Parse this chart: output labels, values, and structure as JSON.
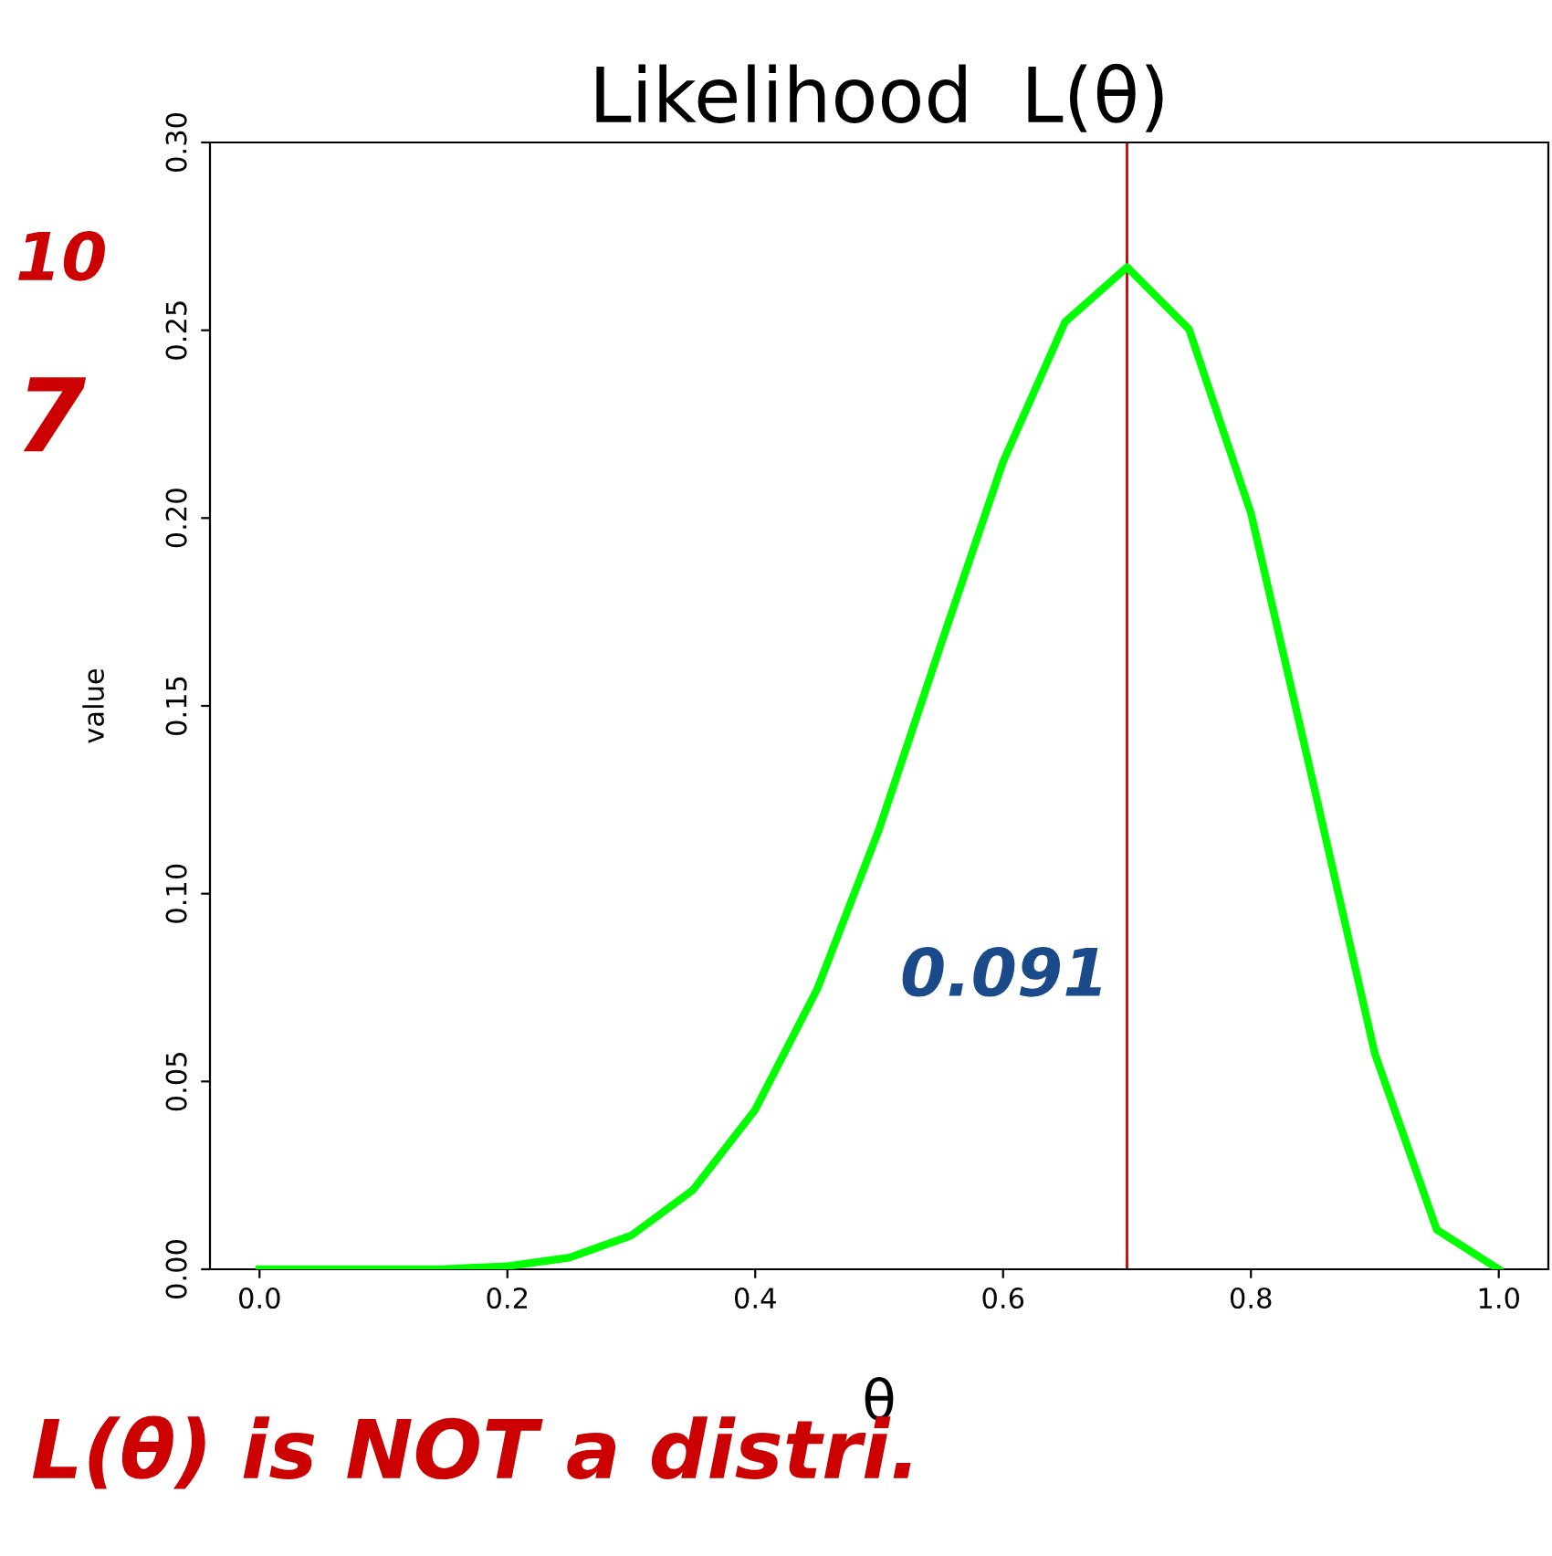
{
  "chart_data": {
    "type": "line",
    "title": "Likelihood  L(θ)",
    "xlabel": "θ",
    "ylabel": "value",
    "x": [
      0.0,
      0.1,
      0.15,
      0.2,
      0.25,
      0.3,
      0.35,
      0.4,
      0.45,
      0.5,
      0.55,
      0.6,
      0.65,
      0.7,
      0.75,
      0.8,
      0.85,
      0.9,
      0.95,
      1.0
    ],
    "series": [
      {
        "color": "#00ff00",
        "values": [
          0.0,
          0.0,
          0.0001,
          0.0008,
          0.0031,
          0.009,
          0.0212,
          0.0425,
          0.0746,
          0.1172,
          0.1665,
          0.215,
          0.2522,
          0.2668,
          0.2503,
          0.2013,
          0.1298,
          0.0574,
          0.0105,
          0.0
        ]
      }
    ],
    "xlim": [
      -0.04,
      1.04
    ],
    "ylim": [
      0,
      0.3
    ],
    "xticks": [
      {
        "value": 0,
        "label": "0.0"
      },
      0.2,
      0.4,
      0.6,
      0.8,
      {
        "value": 1,
        "label": "1.0"
      }
    ],
    "yticks": [
      {
        "value": 0,
        "label": "0.00"
      },
      0.05,
      {
        "value": 0.1,
        "label": "0.10"
      },
      0.15,
      {
        "value": 0.2,
        "label": "0.20"
      },
      0.25,
      {
        "value": 0.3,
        "label": "0.30"
      }
    ],
    "ref_lines": [
      {
        "axis": "x",
        "value": 0.7,
        "color": "#cc0000"
      }
    ],
    "annotations": [
      "0.091",
      "L(θ) is NOT a distri.",
      "10",
      "7"
    ],
    "grid": false,
    "legend": false,
    "marker": "none",
    "line_style": "solid"
  }
}
